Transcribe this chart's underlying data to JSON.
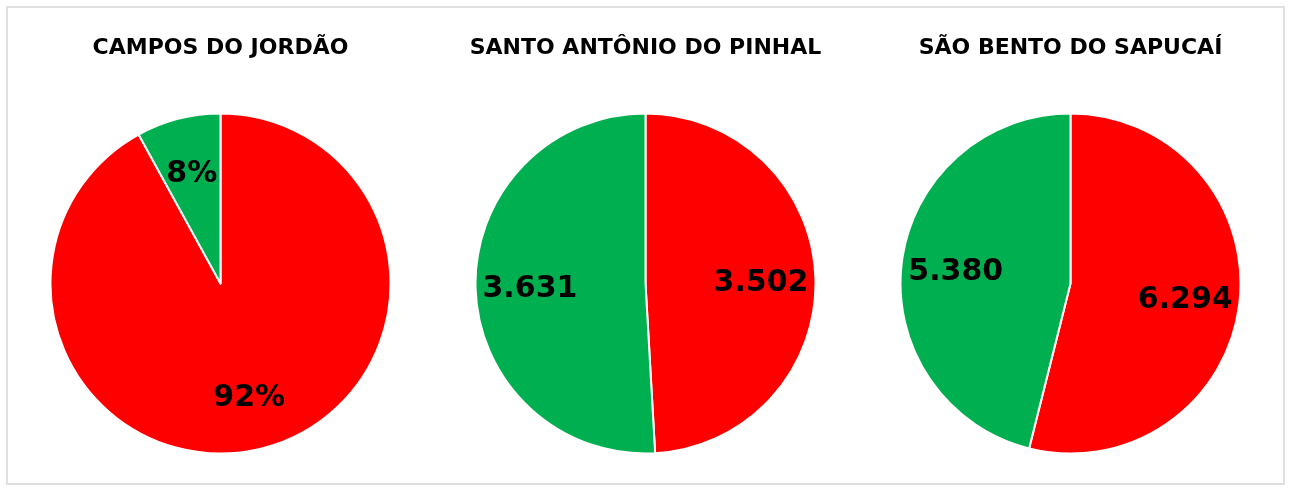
{
  "chart_data": [
    {
      "type": "pie",
      "title": "CAMPOS DO JORDÃO",
      "categories": [
        null,
        null
      ],
      "values": [
        92,
        8
      ],
      "colors": [
        "#ff0000",
        "#00b050"
      ],
      "value_labels": [
        "92%",
        "8%"
      ]
    },
    {
      "type": "pie",
      "title": "SANTO ANTÔNIO DO PINHAL",
      "categories": [
        null,
        null
      ],
      "values": [
        3502,
        3631
      ],
      "colors": [
        "#ff0000",
        "#00b050"
      ],
      "value_labels": [
        "3.502",
        "3.631"
      ]
    },
    {
      "type": "pie",
      "title": "SÃO BENTO DO SAPUCAÍ",
      "categories": [
        null,
        null
      ],
      "values": [
        6294,
        5380
      ],
      "colors": [
        "#ff0000",
        "#00b050"
      ],
      "value_labels": [
        "6.294",
        "5.380"
      ]
    }
  ]
}
